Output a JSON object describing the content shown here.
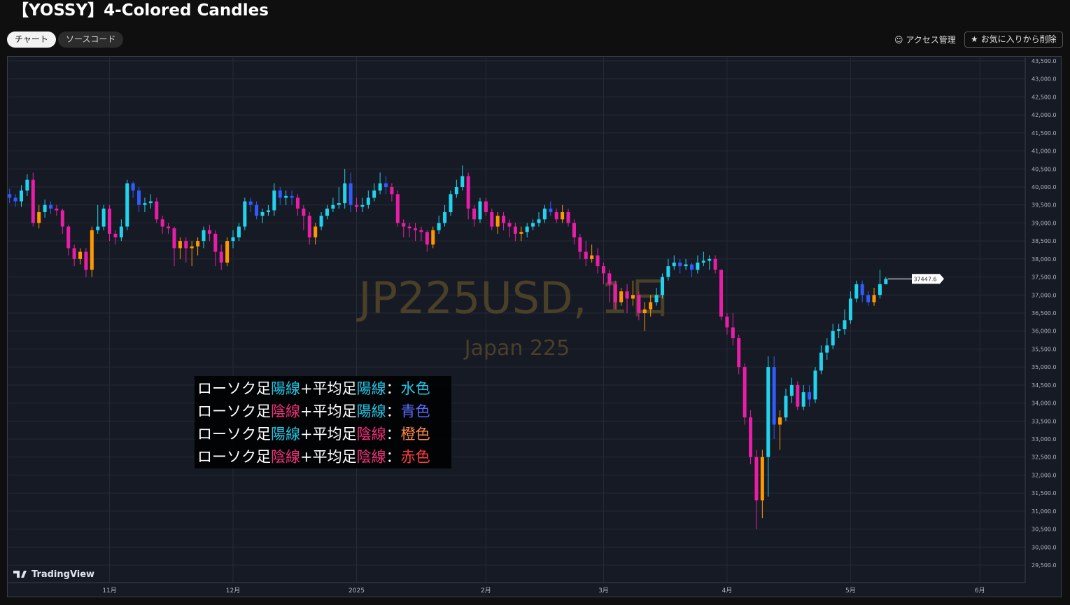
{
  "header": {
    "title": "【YOSSY】4-Colored Candles",
    "tabs": [
      "チャート",
      "ソースコード"
    ],
    "access": "アクセス管理",
    "favorite": "お気に入りから削除"
  },
  "chart_data": {
    "type": "candlestick",
    "watermark": "JP225USD, 1日",
    "watermark_sub": "Japan 225",
    "brand": "TradingView",
    "xlim": [
      -0.2,
      172.7
    ],
    "xticks": [
      {
        "value": 17,
        "label": "11月"
      },
      {
        "value": 38,
        "label": "12月"
      },
      {
        "value": 59,
        "label": "2025"
      },
      {
        "value": 81,
        "label": "2月"
      },
      {
        "value": 101,
        "label": "3月"
      },
      {
        "value": 122,
        "label": "4月"
      },
      {
        "value": 143,
        "label": "5月"
      },
      {
        "value": 165,
        "label": "6月"
      }
    ],
    "ylim": [
      29014,
      43597
    ],
    "yticks": [
      {
        "value": 29500,
        "label": "29,500.0"
      },
      {
        "value": 30000,
        "label": "30,000.0"
      },
      {
        "value": 30500,
        "label": "30,500.0"
      },
      {
        "value": 31000,
        "label": "31,000.0"
      },
      {
        "value": 31500,
        "label": "31,500.0"
      },
      {
        "value": 32000,
        "label": "32,000.0"
      },
      {
        "value": 32500,
        "label": "32,500.0"
      },
      {
        "value": 33000,
        "label": "33,000.0"
      },
      {
        "value": 33500,
        "label": "33,500.0"
      },
      {
        "value": 34000,
        "label": "34,000.0"
      },
      {
        "value": 34500,
        "label": "34,500.0"
      },
      {
        "value": 35000,
        "label": "35,000.0"
      },
      {
        "value": 35500,
        "label": "35,500.0"
      },
      {
        "value": 36000,
        "label": "36,000.0"
      },
      {
        "value": 36500,
        "label": "36,500.0"
      },
      {
        "value": 37000,
        "label": "37,000.0"
      },
      {
        "value": 37500,
        "label": "37,500.0"
      },
      {
        "value": 38000,
        "label": "38,000.0"
      },
      {
        "value": 38500,
        "label": "38,500.0"
      },
      {
        "value": 39000,
        "label": "39,000.0"
      },
      {
        "value": 39500,
        "label": "39,500.0"
      },
      {
        "value": 40000,
        "label": "40,000.0"
      },
      {
        "value": 40500,
        "label": "40,500.0"
      },
      {
        "value": 41000,
        "label": "41,000.0"
      },
      {
        "value": 41500,
        "label": "41,500.0"
      },
      {
        "value": 42000,
        "label": "42,000.0"
      },
      {
        "value": 42500,
        "label": "42,500.0"
      },
      {
        "value": 43000,
        "label": "43,000.0"
      },
      {
        "value": 43500,
        "label": "43,500.0"
      }
    ],
    "grid": true,
    "open": [
      39800,
      39700,
      39600,
      39900,
      40200,
      39000,
      39300,
      39500,
      39400,
      39350,
      38900,
      38300,
      38000,
      38200,
      37700,
      38800,
      38900,
      39400,
      38700,
      38600,
      38900,
      40100,
      39900,
      39500,
      39550,
      39600,
      39100,
      38900,
      38850,
      38300,
      38500,
      38300,
      38350,
      38500,
      38800,
      38700,
      38200,
      37900,
      38500,
      38600,
      38900,
      39600,
      39500,
      39200,
      39300,
      39350,
      39900,
      39700,
      39750,
      39700,
      39400,
      39200,
      38600,
      38900,
      39200,
      39400,
      39500,
      39550,
      40100,
      39500,
      39450,
      39500,
      39700,
      39900,
      40100,
      40000,
      39800,
      39000,
      38900,
      38850,
      38800,
      38750,
      38400,
      38800,
      39000,
      39300,
      39800,
      40000,
      40300,
      39400,
      39100,
      39600,
      39300,
      38900,
      39200,
      39000,
      38900,
      38700,
      38750,
      38900,
      39000,
      39100,
      39400,
      39300,
      39100,
      39300,
      39000,
      38600,
      38200,
      38000,
      38100,
      37800,
      37600,
      37300,
      36800,
      37100,
      36900,
      37000,
      36500,
      36600,
      36800,
      37000,
      37500,
      37800,
      37900,
      37800,
      37850,
      37700,
      37900,
      37950,
      38000,
      37700,
      36400,
      36100,
      35800,
      35000,
      33600,
      32500,
      31300,
      32500,
      35000,
      33400,
      33600,
      34200,
      34500,
      33900,
      34300,
      34100,
      34900,
      35400,
      35600,
      36000,
      36050,
      36300,
      36900,
      37300,
      37000,
      36800,
      37000,
      37300
    ],
    "high": [
      39950,
      39800,
      40050,
      40350,
      40400,
      39500,
      39650,
      39600,
      39500,
      39400,
      38950,
      38400,
      38300,
      38300,
      38900,
      39500,
      39500,
      39500,
      38800,
      39100,
      40200,
      40150,
      40000,
      39700,
      39800,
      39700,
      39200,
      39000,
      38900,
      38600,
      38600,
      38500,
      38600,
      38900,
      38950,
      38800,
      38400,
      38600,
      38800,
      39000,
      39700,
      39700,
      39600,
      39400,
      39500,
      40100,
      40000,
      39900,
      39900,
      39800,
      39500,
      39300,
      39000,
      39300,
      39500,
      39700,
      40000,
      40500,
      40400,
      39700,
      39700,
      39900,
      40100,
      40400,
      40300,
      40100,
      39900,
      39100,
      39000,
      39000,
      38900,
      38800,
      38900,
      39200,
      39500,
      39900,
      40200,
      40600,
      40400,
      39500,
      39700,
      39700,
      39400,
      39300,
      39300,
      39100,
      39000,
      38900,
      39000,
      39100,
      39300,
      39500,
      39600,
      39400,
      39500,
      39400,
      39100,
      38700,
      38500,
      38400,
      38300,
      37900,
      37700,
      37400,
      37200,
      37300,
      37400,
      37100,
      36800,
      37000,
      37200,
      37600,
      38000,
      38100,
      38000,
      38000,
      37900,
      38100,
      38200,
      38100,
      38100,
      37700,
      36500,
      36500,
      35900,
      35100,
      33800,
      32700,
      32700,
      35300,
      35300,
      33800,
      34400,
      34700,
      34600,
      34500,
      34500,
      35000,
      35600,
      35800,
      36200,
      36200,
      36600,
      37100,
      37400,
      37400,
      37100,
      37200,
      37700,
      37500
    ],
    "low": [
      39550,
      39450,
      39450,
      39750,
      38900,
      38850,
      39150,
      39250,
      39200,
      38700,
      38100,
      37800,
      37850,
      37500,
      37500,
      38700,
      38800,
      38500,
      38400,
      38500,
      38800,
      39700,
      39300,
      39300,
      39400,
      39000,
      38700,
      38700,
      37800,
      38000,
      37900,
      37800,
      38100,
      38300,
      38500,
      37800,
      37700,
      37800,
      38300,
      38500,
      38800,
      39300,
      39100,
      39000,
      39200,
      39200,
      39500,
      39500,
      39500,
      39200,
      38800,
      38400,
      38400,
      38800,
      39100,
      39300,
      39400,
      39400,
      39300,
      39300,
      39300,
      39400,
      39600,
      39800,
      39800,
      39600,
      38900,
      38600,
      38600,
      38500,
      38500,
      38200,
      38300,
      38700,
      38900,
      39200,
      39700,
      39900,
      39100,
      38900,
      39000,
      39200,
      38800,
      38700,
      38800,
      38600,
      38500,
      38500,
      38600,
      38800,
      38900,
      39000,
      39200,
      39000,
      39000,
      38900,
      38400,
      38000,
      37800,
      37900,
      37600,
      37300,
      36800,
      36600,
      36700,
      36500,
      36700,
      36300,
      36000,
      36400,
      36700,
      36900,
      37400,
      37700,
      37600,
      37700,
      37500,
      37600,
      37800,
      37700,
      37600,
      36300,
      35900,
      35600,
      34800,
      33400,
      32300,
      30500,
      30800,
      31400,
      33000,
      32700,
      33500,
      34000,
      33800,
      33800,
      33900,
      34000,
      34800,
      35200,
      35500,
      35800,
      35900,
      36200,
      36800,
      36800,
      36700,
      36700,
      36900,
      37300
    ],
    "close": [
      39700,
      39600,
      39900,
      40200,
      39000,
      39300,
      39500,
      39400,
      39350,
      38900,
      38300,
      38000,
      38200,
      37700,
      38800,
      38900,
      39400,
      38700,
      38600,
      38900,
      40100,
      39900,
      39500,
      39550,
      39600,
      39100,
      38900,
      38850,
      38300,
      38500,
      38300,
      38350,
      38500,
      38800,
      38700,
      38200,
      37900,
      38500,
      38600,
      38900,
      39600,
      39500,
      39200,
      39300,
      39350,
      39900,
      39700,
      39750,
      39700,
      39400,
      39200,
      38600,
      38900,
      39200,
      39400,
      39500,
      39550,
      40100,
      39500,
      39450,
      39500,
      39700,
      39900,
      40100,
      40000,
      39800,
      39000,
      38900,
      38850,
      38800,
      38750,
      38400,
      38800,
      39000,
      39300,
      39800,
      40000,
      40300,
      39400,
      39100,
      39600,
      39300,
      38900,
      39200,
      39000,
      38900,
      38700,
      38750,
      38900,
      39000,
      39100,
      39400,
      39300,
      39100,
      39300,
      39000,
      38600,
      38200,
      38000,
      38100,
      37800,
      37600,
      37300,
      36800,
      37100,
      36900,
      37000,
      36500,
      36600,
      36800,
      37000,
      37500,
      37800,
      37900,
      37800,
      37850,
      37700,
      37900,
      37950,
      38000,
      37700,
      36400,
      36100,
      35800,
      35000,
      33600,
      32500,
      31300,
      32500,
      35000,
      33400,
      33600,
      34200,
      34500,
      33900,
      34300,
      34100,
      34900,
      35400,
      35600,
      36000,
      36050,
      36300,
      36900,
      37300,
      37000,
      36800,
      37000,
      37300,
      37447.6
    ],
    "colors": [
      "#2f5bff",
      "#2f5bff",
      "#22d3ee",
      "#22d3ee",
      "#e91ea8",
      "#ff9800",
      "#22d3ee",
      "#2f5bff",
      "#e91ea8",
      "#e91ea8",
      "#e91ea8",
      "#e91ea8",
      "#ff9800",
      "#e91ea8",
      "#ff9800",
      "#22d3ee",
      "#22d3ee",
      "#e91ea8",
      "#e91ea8",
      "#22d3ee",
      "#22d3ee",
      "#2f5bff",
      "#2f5bff",
      "#22d3ee",
      "#22d3ee",
      "#e91ea8",
      "#e91ea8",
      "#e91ea8",
      "#e91ea8",
      "#ff9800",
      "#e91ea8",
      "#ff9800",
      "#ff9800",
      "#22d3ee",
      "#e91ea8",
      "#e91ea8",
      "#e91ea8",
      "#ff9800",
      "#22d3ee",
      "#22d3ee",
      "#22d3ee",
      "#2f5bff",
      "#2f5bff",
      "#22d3ee",
      "#22d3ee",
      "#22d3ee",
      "#2f5bff",
      "#22d3ee",
      "#2f5bff",
      "#e91ea8",
      "#e91ea8",
      "#e91ea8",
      "#ff9800",
      "#22d3ee",
      "#22d3ee",
      "#22d3ee",
      "#22d3ee",
      "#22d3ee",
      "#2f5bff",
      "#e91ea8",
      "#22d3ee",
      "#22d3ee",
      "#22d3ee",
      "#22d3ee",
      "#2f5bff",
      "#e91ea8",
      "#e91ea8",
      "#e91ea8",
      "#e91ea8",
      "#e91ea8",
      "#e91ea8",
      "#e91ea8",
      "#ff9800",
      "#22d3ee",
      "#22d3ee",
      "#22d3ee",
      "#22d3ee",
      "#22d3ee",
      "#e91ea8",
      "#e91ea8",
      "#22d3ee",
      "#e91ea8",
      "#e91ea8",
      "#ff9800",
      "#e91ea8",
      "#e91ea8",
      "#e91ea8",
      "#ff9800",
      "#22d3ee",
      "#22d3ee",
      "#22d3ee",
      "#22d3ee",
      "#2f5bff",
      "#e91ea8",
      "#ff9800",
      "#e91ea8",
      "#e91ea8",
      "#e91ea8",
      "#e91ea8",
      "#ff9800",
      "#e91ea8",
      "#e91ea8",
      "#e91ea8",
      "#e91ea8",
      "#ff9800",
      "#e91ea8",
      "#ff9800",
      "#e91ea8",
      "#ff9800",
      "#ff9800",
      "#22d3ee",
      "#22d3ee",
      "#22d3ee",
      "#22d3ee",
      "#2f5bff",
      "#22d3ee",
      "#2f5bff",
      "#22d3ee",
      "#22d3ee",
      "#22d3ee",
      "#e91ea8",
      "#e91ea8",
      "#e91ea8",
      "#e91ea8",
      "#e91ea8",
      "#e91ea8",
      "#e91ea8",
      "#e91ea8",
      "#ff9800",
      "#22d3ee",
      "#2f5bff",
      "#ff9800",
      "#22d3ee",
      "#22d3ee",
      "#e91ea8",
      "#22d3ee",
      "#2f5bff",
      "#22d3ee",
      "#22d3ee",
      "#22d3ee",
      "#22d3ee",
      "#22d3ee",
      "#22d3ee",
      "#22d3ee",
      "#22d3ee",
      "#2f5bff",
      "#2f5bff",
      "#ff9800",
      "#22d3ee",
      "#22d3ee"
    ],
    "annotation": {
      "lines": [
        [
          {
            "text": "ローソク足",
            "color": "#ffffff"
          },
          {
            "text": "陽線",
            "color": "#1fc7e6"
          },
          {
            "text": "+平均足",
            "color": "#ffffff"
          },
          {
            "text": "陽線",
            "color": "#1fc7e6"
          },
          {
            "text": "：",
            "color": "#ffffff"
          },
          {
            "text": "水色",
            "color": "#22c8e8"
          }
        ],
        [
          {
            "text": "ローソク足",
            "color": "#ffffff"
          },
          {
            "text": "陰線",
            "color": "#f0307a"
          },
          {
            "text": "+平均足",
            "color": "#ffffff"
          },
          {
            "text": "陽線",
            "color": "#1fc7e6"
          },
          {
            "text": "：",
            "color": "#ffffff"
          },
          {
            "text": "青色",
            "color": "#5a6cff"
          }
        ],
        [
          {
            "text": "ローソク足",
            "color": "#ffffff"
          },
          {
            "text": "陽線",
            "color": "#1fc7e6"
          },
          {
            "text": "+平均足",
            "color": "#ffffff"
          },
          {
            "text": "陰線",
            "color": "#f0307a"
          },
          {
            "text": "：",
            "color": "#ffffff"
          },
          {
            "text": "橙色",
            "color": "#ff8a4c"
          }
        ],
        [
          {
            "text": "ローソク足",
            "color": "#ffffff"
          },
          {
            "text": "陰線",
            "color": "#f0307a"
          },
          {
            "text": "+平均足",
            "color": "#ffffff"
          },
          {
            "text": "陰線",
            "color": "#f0307a"
          },
          {
            "text": "：",
            "color": "#ffffff"
          },
          {
            "text": "赤色",
            "color": "#ff3b3b"
          }
        ]
      ]
    }
  }
}
